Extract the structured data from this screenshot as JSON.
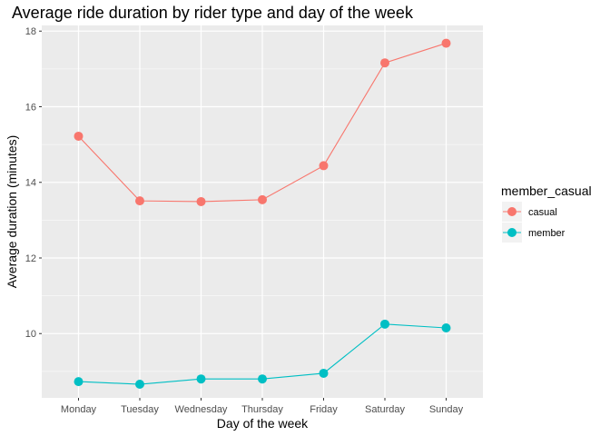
{
  "chart_data": {
    "type": "line",
    "title": "Average ride duration by rider type and day of the week",
    "xlabel": "Day of the week",
    "ylabel": "Average duration (minutes)",
    "categories": [
      "Monday",
      "Tuesday",
      "Wednesday",
      "Thursday",
      "Friday",
      "Saturday",
      "Sunday"
    ],
    "ylim": [
      8.3,
      18.15
    ],
    "yticks": [
      10,
      12,
      14,
      16,
      18
    ],
    "grid": true,
    "legend": {
      "title": "member_casual",
      "position": "right"
    },
    "series": [
      {
        "name": "casual",
        "color": "#F8766D",
        "values": [
          15.22,
          13.51,
          13.49,
          13.54,
          14.44,
          17.16,
          17.68
        ]
      },
      {
        "name": "member",
        "color": "#00BFC4",
        "values": [
          8.73,
          8.66,
          8.8,
          8.8,
          8.95,
          10.25,
          10.15
        ]
      }
    ]
  }
}
